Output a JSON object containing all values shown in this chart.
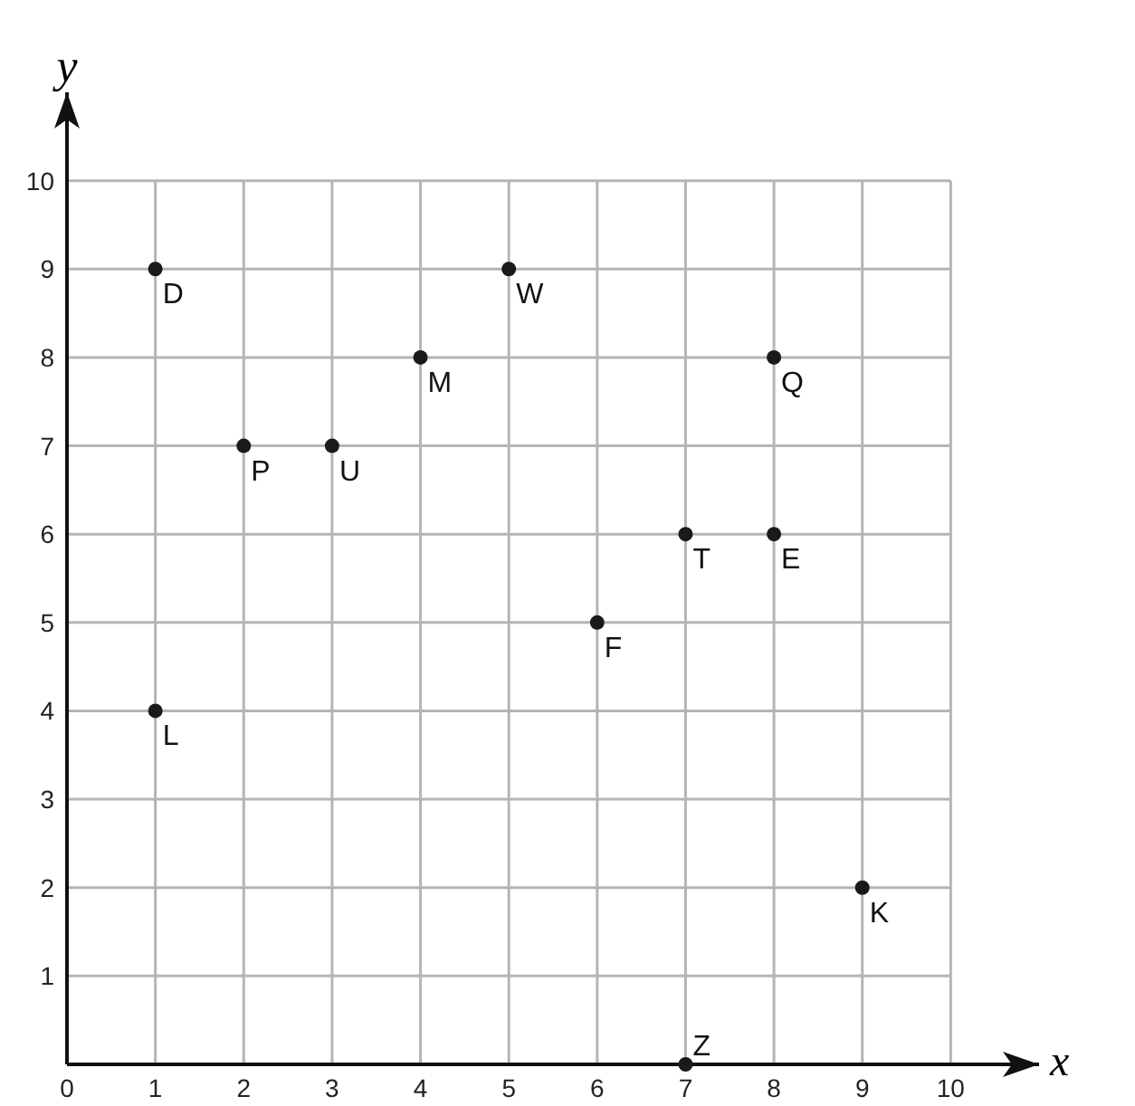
{
  "chart_data": {
    "type": "scatter",
    "xlabel": "x",
    "ylabel": "y",
    "x": [
      1,
      5,
      4,
      8,
      2,
      3,
      7,
      8,
      6,
      1,
      9,
      7
    ],
    "series": [
      {
        "color": "#1a1a1a",
        "values": [
          9,
          9,
          8,
          8,
          7,
          7,
          6,
          6,
          5,
          4,
          2,
          0
        ]
      }
    ],
    "xlim": [
      0,
      11
    ],
    "ylim": [
      0,
      11
    ],
    "xticks": [
      0,
      1,
      2,
      3,
      4,
      5,
      6,
      7,
      8,
      9,
      10
    ],
    "yticks": [
      1,
      2,
      3,
      4,
      5,
      6,
      7,
      8,
      9,
      10
    ],
    "grid": true,
    "marker": "circle",
    "annotations": [
      {
        "text": "D",
        "x": 1,
        "y": 9
      },
      {
        "text": "W",
        "x": 5,
        "y": 9
      },
      {
        "text": "M",
        "x": 4,
        "y": 8
      },
      {
        "text": "Q",
        "x": 8,
        "y": 8
      },
      {
        "text": "P",
        "x": 2,
        "y": 7
      },
      {
        "text": "U",
        "x": 3,
        "y": 7
      },
      {
        "text": "T",
        "x": 7,
        "y": 6
      },
      {
        "text": "E",
        "x": 8,
        "y": 6
      },
      {
        "text": "F",
        "x": 6,
        "y": 5
      },
      {
        "text": "L",
        "x": 1,
        "y": 4
      },
      {
        "text": "K",
        "x": 9,
        "y": 2
      },
      {
        "text": "Z",
        "x": 7,
        "y": 0
      }
    ]
  }
}
